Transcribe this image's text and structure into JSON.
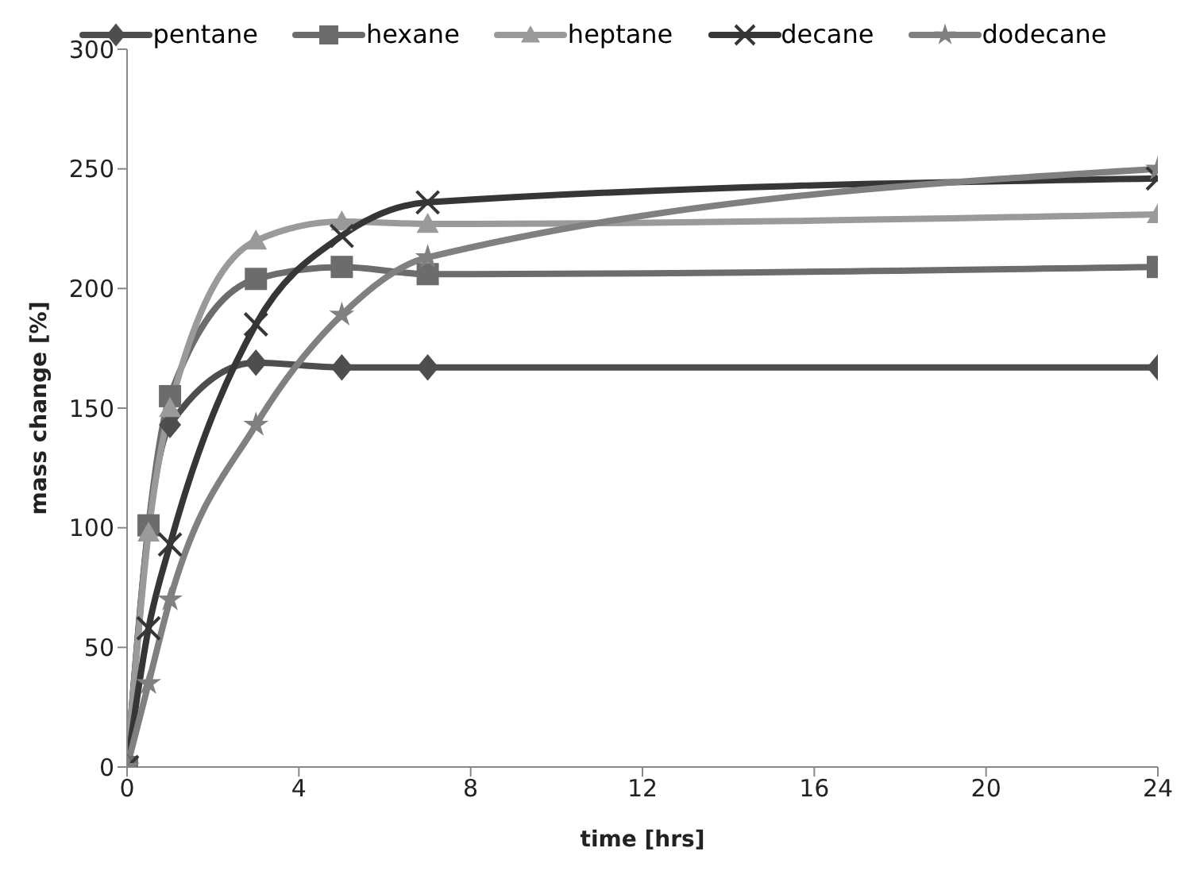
{
  "chart_data": {
    "type": "line",
    "xlabel": "time [hrs]",
    "ylabel": "mass change [%]",
    "x": [
      0,
      0.5,
      1,
      3,
      5,
      7,
      24
    ],
    "xlim": [
      0,
      24
    ],
    "xticks": [
      0,
      4,
      8,
      12,
      16,
      20,
      24
    ],
    "ylim": [
      0,
      300
    ],
    "yticks": [
      0,
      50,
      100,
      150,
      200,
      250,
      300
    ],
    "grid": false,
    "legend": "top",
    "series": [
      {
        "name": "pentane",
        "color": "#4e4e4e",
        "marker": "diamond",
        "values": [
          0,
          100,
          143,
          169,
          167,
          167,
          167
        ]
      },
      {
        "name": "hexane",
        "color": "#6c6c6c",
        "marker": "square",
        "values": [
          0,
          101,
          155,
          204,
          209,
          206,
          209
        ]
      },
      {
        "name": "heptane",
        "color": "#9a9a9a",
        "marker": "triangle",
        "values": [
          0,
          98,
          150,
          220,
          228,
          227,
          231
        ]
      },
      {
        "name": "decane",
        "color": "#363636",
        "marker": "cross",
        "values": [
          0,
          58,
          93,
          185,
          222,
          236,
          246
        ]
      },
      {
        "name": "dodecane",
        "color": "#808080",
        "marker": "star",
        "values": [
          0,
          35,
          70,
          143,
          189,
          213,
          250
        ]
      }
    ]
  }
}
